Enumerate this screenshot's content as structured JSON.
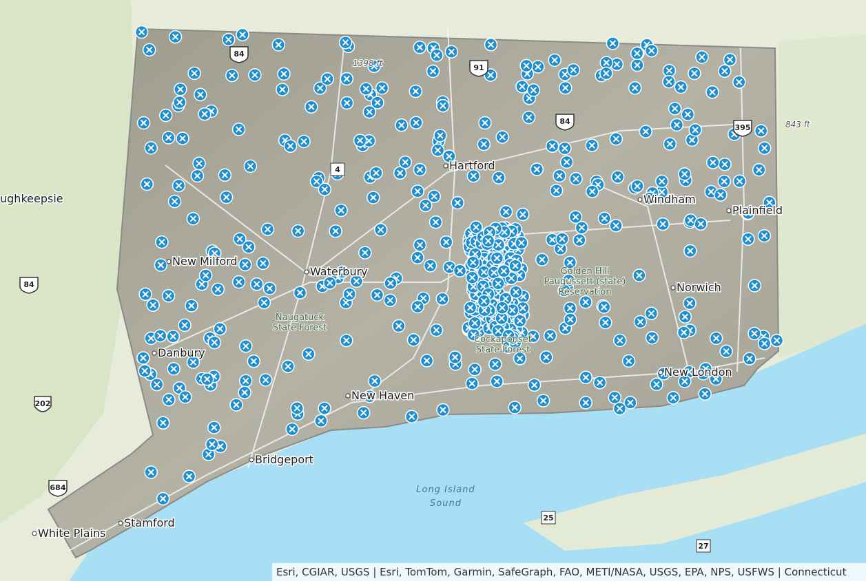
{
  "map": {
    "places": [
      {
        "label": "Hartford"
      },
      {
        "label": "Waterbury"
      },
      {
        "label": "Bridgeport"
      },
      {
        "label": "Stamford"
      },
      {
        "label": "White Plains"
      },
      {
        "label": "New Milford"
      },
      {
        "label": "Danbury"
      },
      {
        "label": "New Haven"
      },
      {
        "label": "Windham"
      },
      {
        "label": "Plainfield"
      },
      {
        "label": "Norwich"
      },
      {
        "label": "New London"
      },
      {
        "label": "ughkeepsie"
      }
    ],
    "parks": [
      {
        "label": "Golden Hill"
      },
      {
        "label": "Paugussett (state)"
      },
      {
        "label": "Reservation"
      },
      {
        "label": "Naugatuck"
      },
      {
        "label": "State Forest"
      },
      {
        "label": "Cockaponset"
      },
      {
        "label": "State Forest"
      }
    ],
    "water": [
      "Long Island",
      "Sound"
    ],
    "elevations": [
      "843 ft",
      "1398 ft"
    ],
    "shields": [
      "84",
      "91",
      "84",
      "395",
      "4",
      "202",
      "684",
      "84",
      "25",
      "27"
    ],
    "attribution": "Esri, CGIAR, USGS | Esri, TomTom, Garmin, SafeGraph, FAO, METI/NASA, USGS, EPA, NPS, USFWS | Connecticut"
  }
}
